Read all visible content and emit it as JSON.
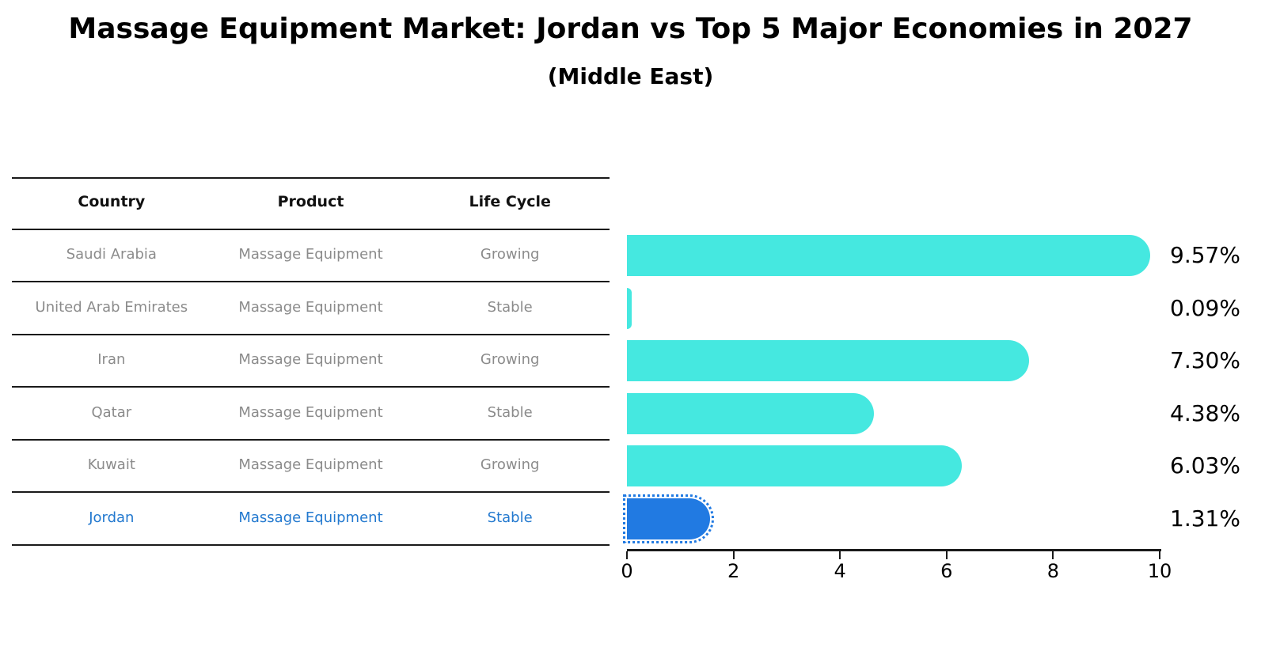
{
  "title": "Massage Equipment Market: Jordan vs Top 5 Major Economies in 2027",
  "subtitle": "(Middle East)",
  "table": {
    "headers": [
      "Country",
      "Product",
      "Life Cycle"
    ],
    "rows": [
      {
        "country": "Saudi Arabia",
        "product": "Massage Equipment",
        "life_cycle": "Growing",
        "highlighted": false
      },
      {
        "country": "United Arab Emirates",
        "product": "Massage Equipment",
        "life_cycle": "Stable",
        "highlighted": false
      },
      {
        "country": "Iran",
        "product": "Massage Equipment",
        "life_cycle": "Growing",
        "highlighted": false
      },
      {
        "country": "Qatar",
        "product": "Massage Equipment",
        "life_cycle": "Stable",
        "highlighted": false
      },
      {
        "country": "Kuwait",
        "product": "Massage Equipment",
        "life_cycle": "Growing",
        "highlighted": false
      },
      {
        "country": "Jordan",
        "product": "Massage Equipment",
        "life_cycle": "Stable",
        "highlighted": true
      }
    ]
  },
  "chart_data": {
    "type": "bar",
    "orientation": "horizontal",
    "categories": [
      "Saudi Arabia",
      "United Arab Emirates",
      "Iran",
      "Qatar",
      "Kuwait",
      "Jordan"
    ],
    "values": [
      9.57,
      0.09,
      7.3,
      4.38,
      6.03,
      1.31
    ],
    "value_labels": [
      "9.57%",
      "0.09%",
      "7.30%",
      "4.38%",
      "6.03%",
      "1.31%"
    ],
    "xlim": [
      0,
      10
    ],
    "x_ticks": [
      "0",
      "2",
      "4",
      "6",
      "8",
      "10"
    ],
    "highlight_index": 5,
    "legend": "none",
    "grid": false,
    "colors": {
      "bar_default": "#45e8e0",
      "bar_highlight": "#217ae2",
      "highlight_text": "#2379cf",
      "row_text": "#8b8b8b",
      "header_text": "#111111"
    }
  }
}
